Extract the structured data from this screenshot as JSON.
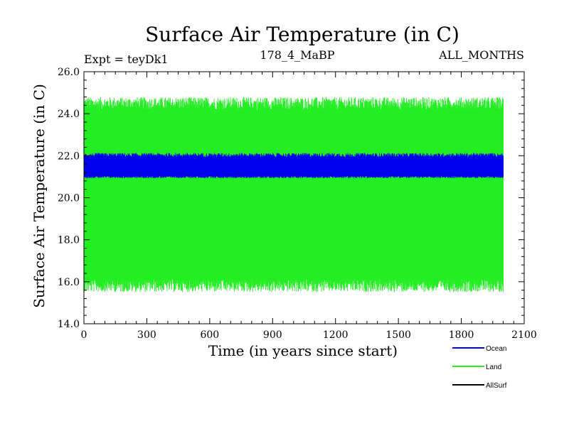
{
  "chart_data": {
    "type": "line",
    "title": "Surface Air Temperature (in C)",
    "subtitle_left": "Expt = teyDk1",
    "subtitle_center": "178_4_MaBP",
    "subtitle_right": "ALL_MONTHS",
    "xlabel": "Time (in years since start)",
    "ylabel": "Surface Air Temperature (in C)",
    "xlim": [
      0,
      2100
    ],
    "ylim": [
      14.0,
      26.0
    ],
    "x_ticks": [
      0,
      300,
      600,
      900,
      1200,
      1500,
      1800,
      2100
    ],
    "x_tick_labels": [
      "0",
      "300",
      "600",
      "900",
      "1200",
      "1500",
      "1800",
      "2100"
    ],
    "y_ticks": [
      14.0,
      16.0,
      18.0,
      20.0,
      22.0,
      24.0,
      26.0
    ],
    "y_tick_labels": [
      "14.0",
      "16.0",
      "18.0",
      "20.0",
      "22.0",
      "24.0",
      "26.0"
    ],
    "grid": false,
    "legend_position": "bottom-right, below plot",
    "x_data_range": [
      0,
      2000
    ],
    "series": [
      {
        "name": "Land",
        "color": "#22ee22",
        "style": "dense monthly oscillation (band)",
        "x_range": [
          0,
          2000
        ],
        "band_min": [
          15.3,
          16.3
        ],
        "band_max": [
          24.3,
          25.0
        ],
        "band_upper_mean": 24.4,
        "band_lower_mean": 15.9
      },
      {
        "name": "Ocean",
        "color": "#0000ee",
        "style": "dense monthly oscillation (band)",
        "x_range": [
          0,
          2000
        ],
        "band_min": [
          20.9,
          21.1
        ],
        "band_max": [
          21.9,
          22.2
        ],
        "band_upper_mean": 22.0,
        "band_lower_mean": 21.0
      },
      {
        "name": "AllSurf",
        "color": "#000000",
        "style": "line (hidden beneath other series)",
        "x_range": [
          0,
          2000
        ]
      }
    ]
  }
}
